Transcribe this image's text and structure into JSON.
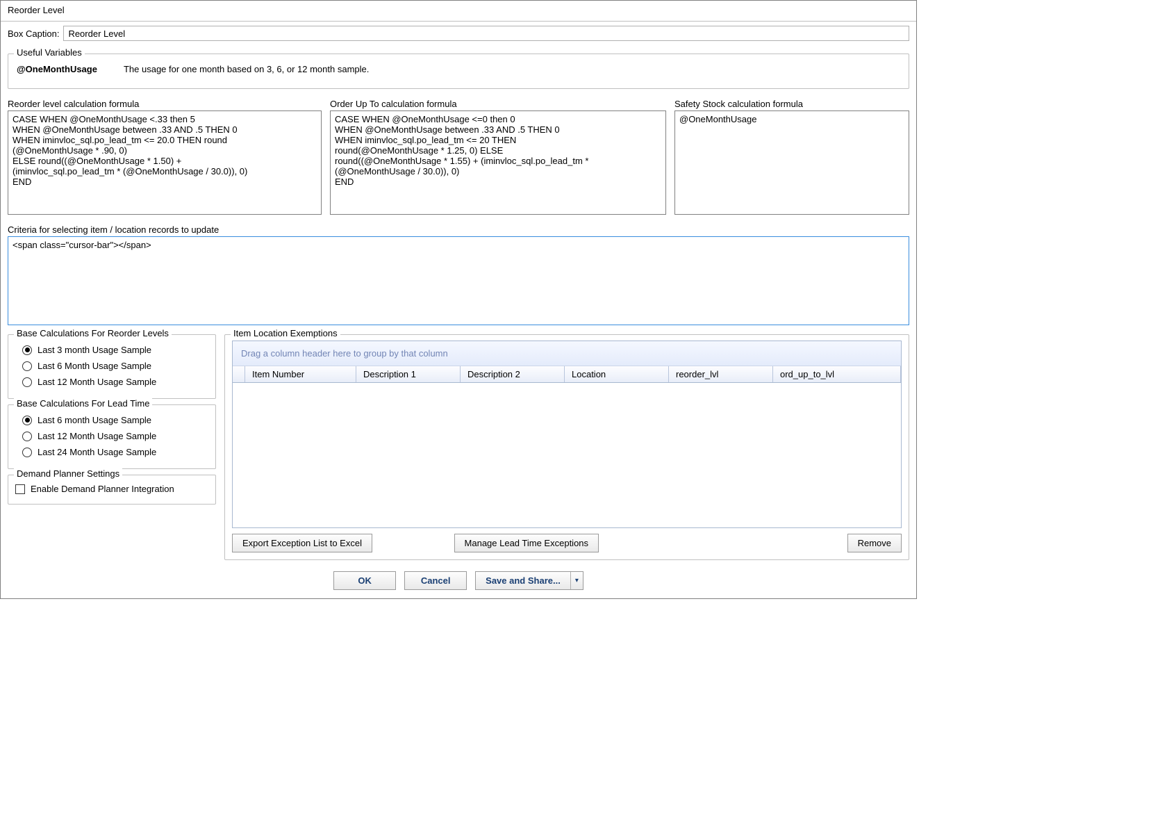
{
  "window": {
    "title": "Reorder Level"
  },
  "caption": {
    "label": "Box Caption:",
    "value": "Reorder Level"
  },
  "usefulVars": {
    "legend": "Useful Variables",
    "name": "@OneMonthUsage",
    "desc": "The usage for one month based on 3, 6, or 12 month sample."
  },
  "formulas": {
    "reorder": {
      "label": "Reorder level calculation formula",
      "text": "CASE WHEN @OneMonthUsage <.33 then 5\nWHEN @OneMonthUsage between .33 AND .5 THEN 0\nWHEN iminvloc_sql.po_lead_tm <= 20.0 THEN round\n(@OneMonthUsage * .90, 0)\nELSE round((@OneMonthUsage * 1.50) +\n(iminvloc_sql.po_lead_tm * (@OneMonthUsage / 30.0)), 0)\nEND"
    },
    "orderUpTo": {
      "label": "Order Up To calculation formula",
      "text": "CASE WHEN @OneMonthUsage <=0 then 0\nWHEN @OneMonthUsage between .33 AND .5 THEN 0\nWHEN iminvloc_sql.po_lead_tm <= 20 THEN\nround(@OneMonthUsage * 1.25, 0) ELSE\nround((@OneMonthUsage * 1.55) + (iminvloc_sql.po_lead_tm *\n(@OneMonthUsage / 30.0)), 0)\nEND"
    },
    "safety": {
      "label": "Safety Stock calculation formula",
      "text": "@OneMonthUsage"
    }
  },
  "criteria": {
    "label": "Criteria for selecting item / location records  to update",
    "value": ""
  },
  "reorderBase": {
    "legend": "Base Calculations For Reorder Levels",
    "options": [
      {
        "label": "Last 3 month Usage Sample",
        "checked": true
      },
      {
        "label": "Last 6 Month Usage Sample",
        "checked": false
      },
      {
        "label": "Last 12 Month Usage Sample",
        "checked": false
      }
    ]
  },
  "leadBase": {
    "legend": "Base Calculations For Lead Time",
    "options": [
      {
        "label": "Last 6 month Usage Sample",
        "checked": true
      },
      {
        "label": "Last 12 Month Usage Sample",
        "checked": false
      },
      {
        "label": "Last 24 Month Usage Sample",
        "checked": false
      }
    ]
  },
  "demand": {
    "legend": "Demand Planner Settings",
    "checkbox": "Enable Demand Planner Integration",
    "checked": false
  },
  "exemptions": {
    "legend": "Item Location Exemptions",
    "groupHint": "Drag a column header here to group by that column",
    "columns": [
      "Item Number",
      "Description 1",
      "Description 2",
      "Location",
      "reorder_lvl",
      "ord_up_to_lvl"
    ],
    "buttons": {
      "export": "Export Exception List to Excel",
      "manage": "Manage Lead Time Exceptions",
      "remove": "Remove"
    }
  },
  "bottom": {
    "ok": "OK",
    "cancel": "Cancel",
    "saveShare": "Save and Share..."
  }
}
